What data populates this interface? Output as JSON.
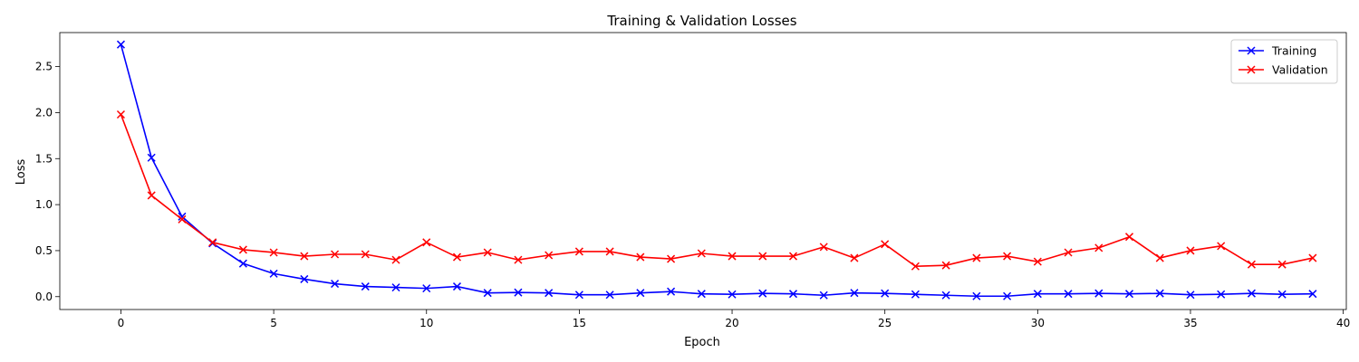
{
  "chart_data": {
    "type": "line",
    "title": "Training & Validation Losses",
    "xlabel": "Epoch",
    "ylabel": "Loss",
    "xlim": [
      -2,
      40.1
    ],
    "ylim": [
      -0.14,
      2.87
    ],
    "xticks": [
      0,
      5,
      10,
      15,
      20,
      25,
      30,
      35,
      40
    ],
    "yticks": [
      0.0,
      0.5,
      1.0,
      1.5,
      2.0,
      2.5
    ],
    "ytick_labels": [
      "0.0",
      "0.5",
      "1.0",
      "1.5",
      "2.0",
      "2.5"
    ],
    "grid": false,
    "legend_position": "top-right",
    "x": [
      0,
      1,
      2,
      3,
      4,
      5,
      6,
      7,
      8,
      9,
      10,
      11,
      12,
      13,
      14,
      15,
      16,
      17,
      18,
      19,
      20,
      21,
      22,
      23,
      24,
      25,
      26,
      27,
      28,
      29,
      30,
      31,
      32,
      33,
      34,
      35,
      36,
      37,
      38,
      39
    ],
    "series": [
      {
        "name": "Training",
        "color": "#0000ff",
        "marker": "x",
        "values": [
          2.74,
          1.51,
          0.87,
          0.58,
          0.36,
          0.25,
          0.19,
          0.14,
          0.11,
          0.1,
          0.09,
          0.11,
          0.04,
          0.045,
          0.04,
          0.02,
          0.02,
          0.04,
          0.055,
          0.03,
          0.025,
          0.035,
          0.03,
          0.015,
          0.04,
          0.035,
          0.025,
          0.015,
          0.005,
          0.005,
          0.03,
          0.03,
          0.035,
          0.03,
          0.035,
          0.02,
          0.025,
          0.035,
          0.025,
          0.03
        ]
      },
      {
        "name": "Validation",
        "color": "#ff0000",
        "marker": "x",
        "values": [
          1.98,
          1.1,
          0.84,
          0.59,
          0.51,
          0.48,
          0.44,
          0.46,
          0.46,
          0.4,
          0.59,
          0.43,
          0.48,
          0.4,
          0.45,
          0.49,
          0.49,
          0.43,
          0.41,
          0.47,
          0.44,
          0.44,
          0.44,
          0.54,
          0.42,
          0.57,
          0.33,
          0.34,
          0.42,
          0.44,
          0.38,
          0.48,
          0.53,
          0.65,
          0.42,
          0.5,
          0.55,
          0.35,
          0.35,
          0.42
        ]
      }
    ]
  }
}
